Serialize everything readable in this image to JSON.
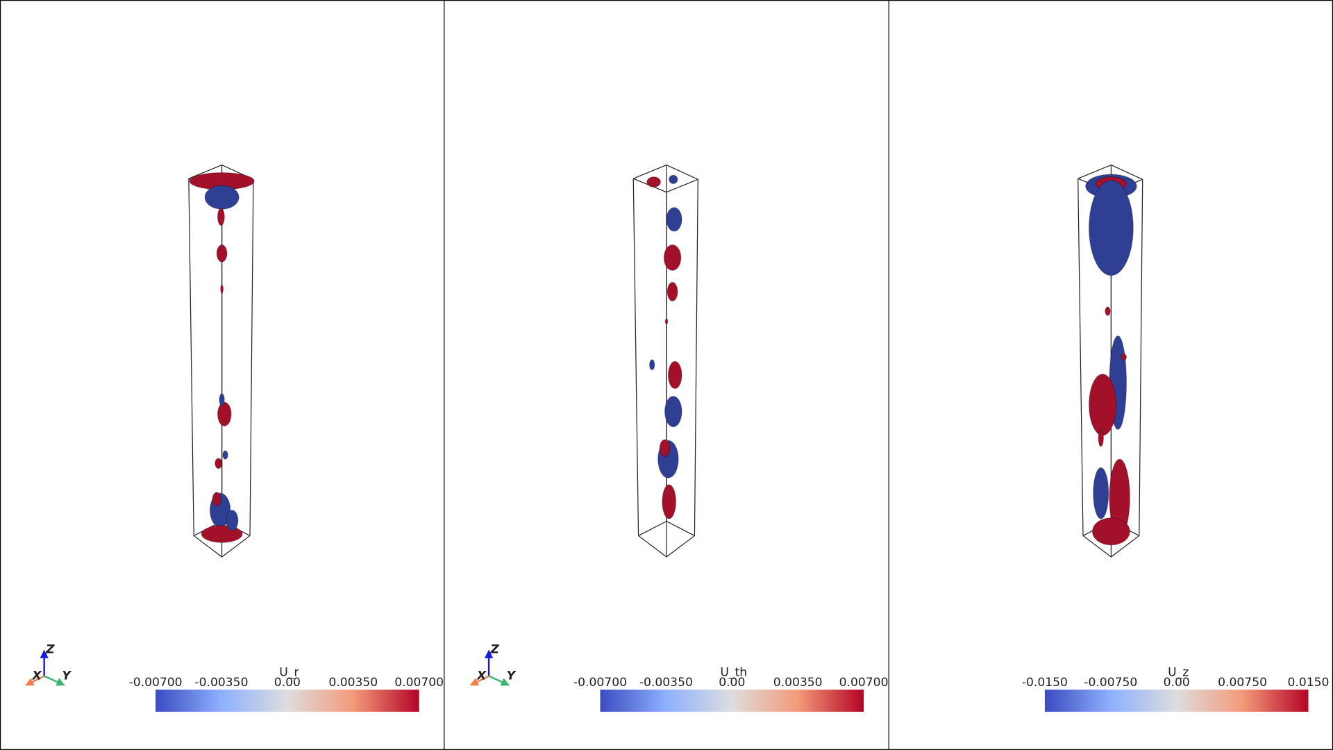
{
  "panels": [
    {
      "title": "U_r",
      "ticks": [
        "-0.00700",
        "-0.00350",
        "0.00",
        "0.00350",
        "0.00700"
      ],
      "axes_labels": [
        "X",
        "Y",
        "Z"
      ]
    },
    {
      "title": "U_th",
      "ticks": [
        "-0.00700",
        "-0.00350",
        "0.00",
        "0.00350",
        "0.00700"
      ],
      "axes_labels": [
        "X",
        "Y",
        "Z"
      ]
    },
    {
      "title": "U_z",
      "ticks": [
        "-0.0150",
        "-0.00750",
        "0.00",
        "0.00750",
        "0.0150"
      ]
    }
  ]
}
